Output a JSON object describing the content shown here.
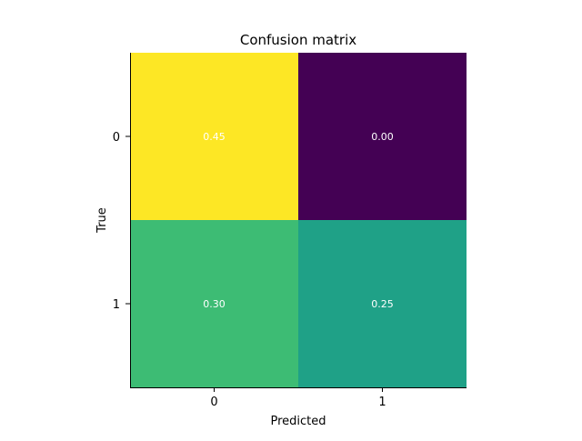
{
  "chart_data": {
    "type": "heatmap",
    "title": "Confusion matrix",
    "xlabel": "Predicted",
    "ylabel": "True",
    "x_categories": [
      "0",
      "1"
    ],
    "y_categories": [
      "0",
      "1"
    ],
    "values": [
      [
        0.45,
        0.0
      ],
      [
        0.3,
        0.25
      ]
    ],
    "value_labels": [
      [
        "0.45",
        "0.00"
      ],
      [
        "0.30",
        "0.25"
      ]
    ],
    "colormap": "viridis",
    "value_range": [
      0.0,
      0.45
    ],
    "grid": false,
    "cell_colors": [
      [
        "#fde725",
        "#440154"
      ],
      [
        "#3dbc74",
        "#1fa187"
      ]
    ]
  }
}
